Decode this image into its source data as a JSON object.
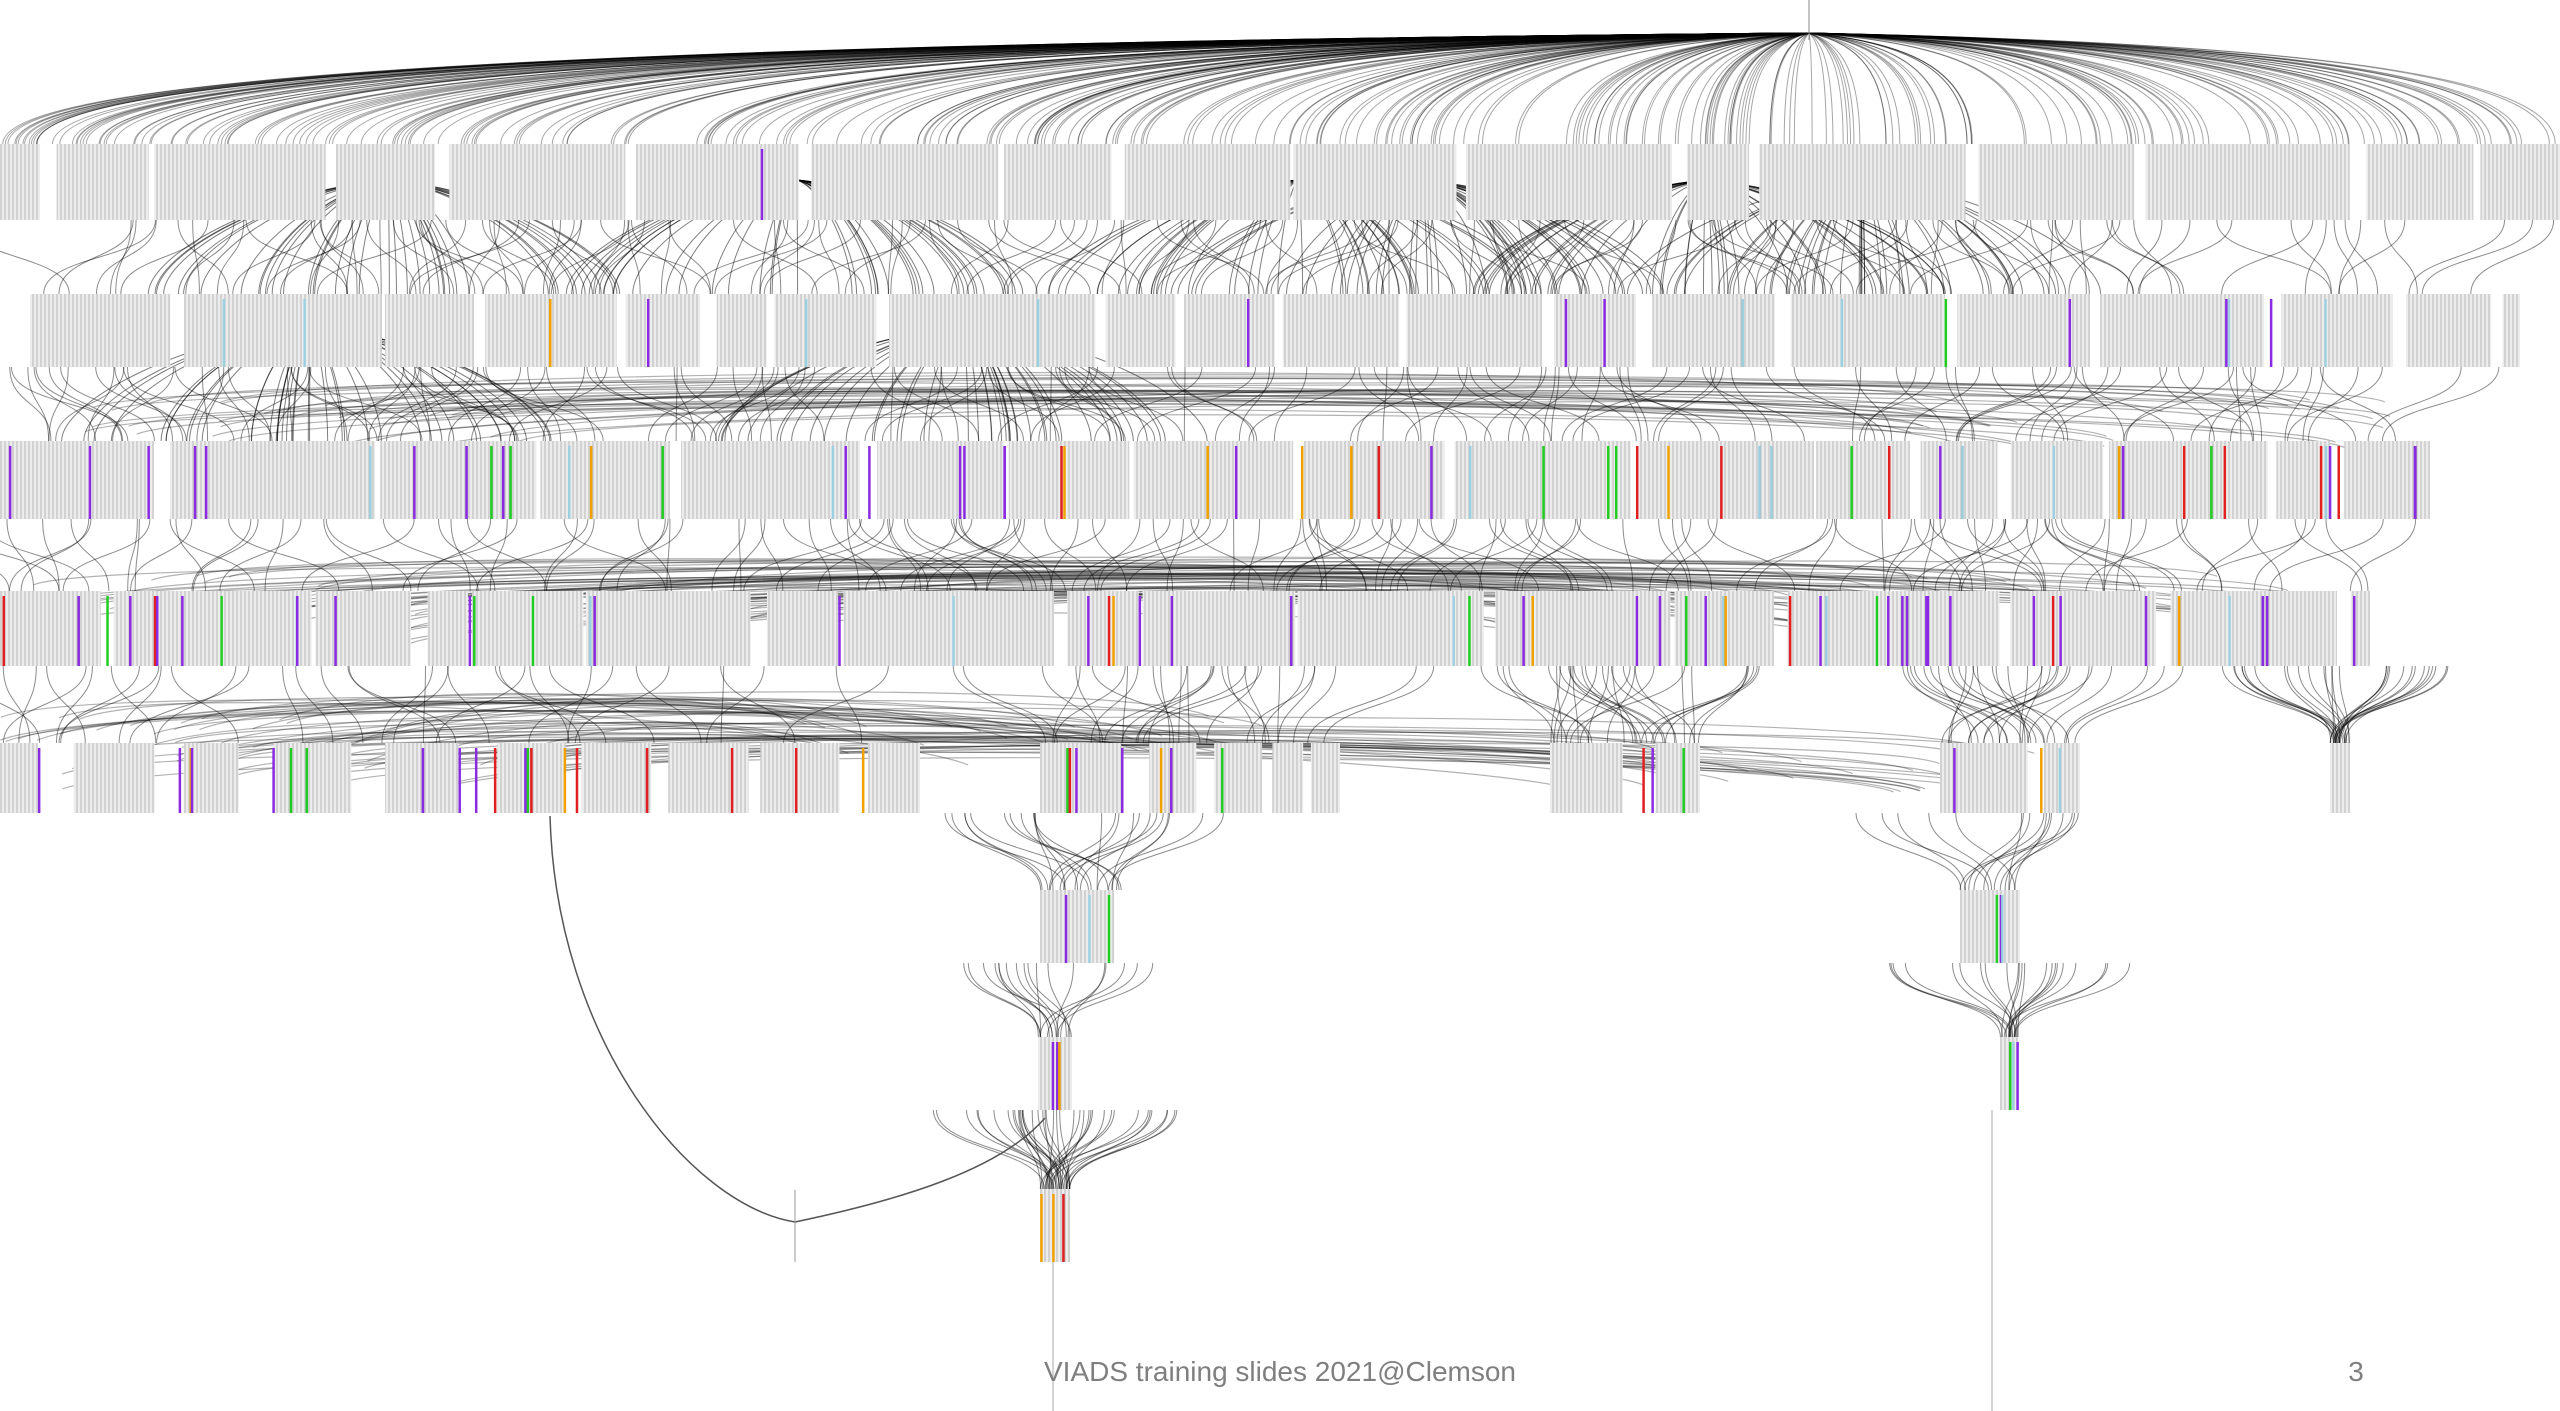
{
  "footer": {
    "text": "VIADS training slides 2021@Clemson",
    "page_number": "3"
  }
}
